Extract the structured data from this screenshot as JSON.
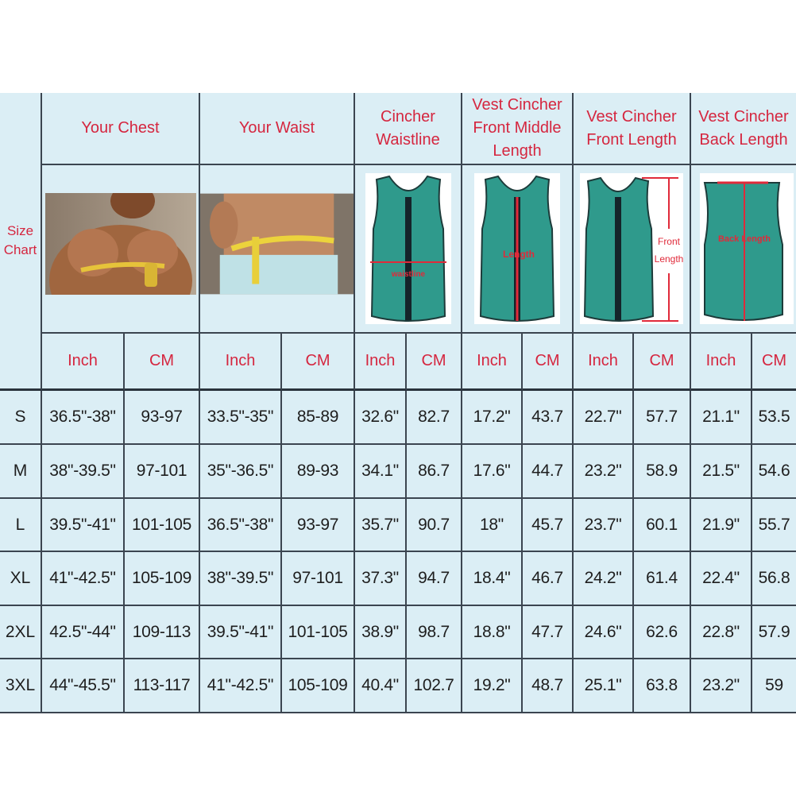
{
  "size_chart_label": "Size Chart",
  "headers": [
    "Your Chest",
    "Your Waist",
    "Cincher Waistline",
    "Vest Cincher Front Middle Length",
    "Vest Cincher Front Length",
    "Vest Cincher Back Length"
  ],
  "header_lines": [
    [
      "Your Chest"
    ],
    [
      "Your Waist"
    ],
    [
      "Cincher",
      "Waistline"
    ],
    [
      "Vest Cincher",
      "Front Middle",
      "Length"
    ],
    [
      "Vest Cincher",
      "Front Length"
    ],
    [
      "Vest Cincher",
      "Back Length"
    ]
  ],
  "image_labels": {
    "waistline": "waistline",
    "front_middle": "Length",
    "front": [
      "Front",
      "Length"
    ],
    "back": "Back Length"
  },
  "units": [
    "Inch",
    "CM"
  ],
  "colors": {
    "background": "#dbeef5",
    "header_text": "#d5263f",
    "vest": "#2f9a8c",
    "measure_line": "#e02a3a"
  },
  "rows": [
    {
      "size": "S",
      "values": [
        "36.5\"-38\"",
        "93-97",
        "33.5\"-35\"",
        "85-89",
        "32.6\"",
        "82.7",
        "17.2\"",
        "43.7",
        "22.7\"",
        "57.7",
        "21.1\"",
        "53.5"
      ]
    },
    {
      "size": "M",
      "values": [
        "38\"-39.5\"",
        "97-101",
        "35\"-36.5\"",
        "89-93",
        "34.1\"",
        "86.7",
        "17.6\"",
        "44.7",
        "23.2\"",
        "58.9",
        "21.5\"",
        "54.6"
      ]
    },
    {
      "size": "L",
      "values": [
        "39.5\"-41\"",
        "101-105",
        "36.5\"-38\"",
        "93-97",
        "35.7\"",
        "90.7",
        "18\"",
        "45.7",
        "23.7\"",
        "60.1",
        "21.9\"",
        "55.7"
      ]
    },
    {
      "size": "XL",
      "values": [
        "41\"-42.5\"",
        "105-109",
        "38\"-39.5\"",
        "97-101",
        "37.3\"",
        "94.7",
        "18.4\"",
        "46.7",
        "24.2\"",
        "61.4",
        "22.4\"",
        "56.8"
      ]
    },
    {
      "size": "2XL",
      "values": [
        "42.5\"-44\"",
        "109-113",
        "39.5\"-41\"",
        "101-105",
        "38.9\"",
        "98.7",
        "18.8\"",
        "47.7",
        "24.6\"",
        "62.6",
        "22.8\"",
        "57.9"
      ]
    },
    {
      "size": "3XL",
      "values": [
        "44\"-45.5\"",
        "113-117",
        "41\"-42.5\"",
        "105-109",
        "40.4\"",
        "102.7",
        "19.2\"",
        "48.7",
        "25.1\"",
        "63.8",
        "23.2\"",
        "59"
      ]
    }
  ]
}
